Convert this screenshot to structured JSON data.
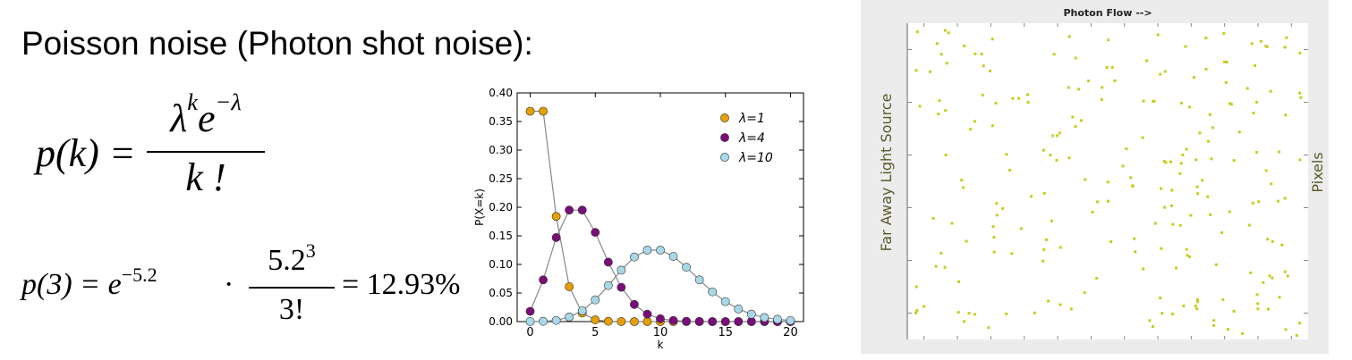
{
  "heading": "Poisson noise (Photon shot noise):",
  "formula1": {
    "lhs": "p(k) =",
    "num_base": "λ",
    "num_sup": "k",
    "num_e": "e",
    "num_esup": "−λ",
    "den": "k !"
  },
  "formula2": {
    "lhs": "p(3) = e",
    "lhs_sup": "−5.2",
    "dot": "·",
    "num": "5.2",
    "num_sup": "3",
    "den": "3!",
    "result": "= 12.93%"
  },
  "chart_data": {
    "type": "line",
    "xlabel": "k",
    "ylabel": "P(X=k)",
    "xlim": [
      -1,
      21
    ],
    "ylim": [
      0,
      0.4
    ],
    "x_ticks": [
      "0",
      "5",
      "10",
      "15",
      "20"
    ],
    "y_ticks": [
      "0.00",
      "0.05",
      "0.10",
      "0.15",
      "0.20",
      "0.25",
      "0.30",
      "0.35",
      "0.40"
    ],
    "legend_position": "top-right",
    "x": [
      0,
      1,
      2,
      3,
      4,
      5,
      6,
      7,
      8,
      9,
      10,
      11,
      12,
      13,
      14,
      15,
      16,
      17,
      18,
      19,
      20
    ],
    "series": [
      {
        "name": "λ=1",
        "color": "#e69f00",
        "values": [
          0.368,
          0.368,
          0.184,
          0.061,
          0.015,
          0.003,
          0.0005,
          0.0001,
          0,
          0,
          0,
          0,
          0,
          0,
          0,
          0,
          0,
          0,
          0,
          0,
          0
        ]
      },
      {
        "name": "λ=4",
        "color": "#7b0d7b",
        "values": [
          0.018,
          0.073,
          0.147,
          0.195,
          0.195,
          0.156,
          0.104,
          0.06,
          0.03,
          0.013,
          0.005,
          0.002,
          0.0006,
          0.0002,
          0,
          0,
          0,
          0,
          0,
          0,
          0
        ]
      },
      {
        "name": "λ=10",
        "color": "#a8d8e8",
        "values": [
          5e-05,
          0.0005,
          0.002,
          0.008,
          0.019,
          0.038,
          0.063,
          0.09,
          0.113,
          0.125,
          0.125,
          0.114,
          0.095,
          0.073,
          0.052,
          0.035,
          0.022,
          0.013,
          0.007,
          0.004,
          0.002
        ]
      }
    ]
  },
  "simulation": {
    "top_label": "Photon Flow -->",
    "left_label": "Far Away Light Source",
    "right_label": "Pixels",
    "dot_color": "#c8cc1e",
    "dot_count": 220,
    "seed": 7
  }
}
